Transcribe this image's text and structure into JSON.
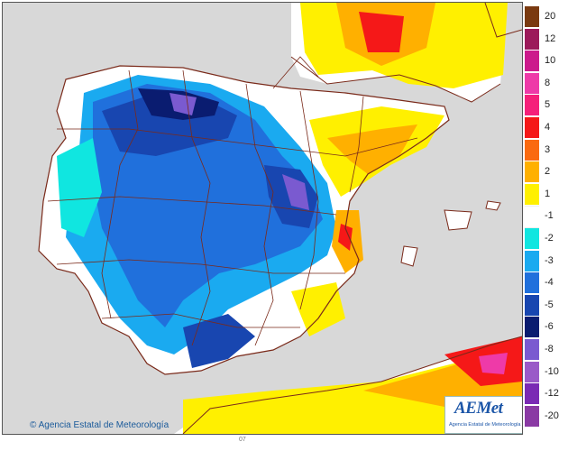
{
  "map": {
    "copyright": "Agencia Estatal de Meteorología",
    "logo_brand": "AEMet",
    "logo_subtitle": "Agencia Estatal de Meteorología",
    "footer_mark": "07"
  },
  "legend": {
    "items": [
      {
        "label": "20",
        "color": "#7a3a10"
      },
      {
        "label": "12",
        "color": "#9c1a5a"
      },
      {
        "label": "10",
        "color": "#cc1a8c"
      },
      {
        "label": "8",
        "color": "#ee3aa8"
      },
      {
        "label": "5",
        "color": "#f5207a"
      },
      {
        "label": "4",
        "color": "#f51818"
      },
      {
        "label": "3",
        "color": "#fa6a10"
      },
      {
        "label": "2",
        "color": "#ffb000"
      },
      {
        "label": "1",
        "color": "#fff000"
      },
      {
        "label": "-1",
        "color": "#ffffff"
      },
      {
        "label": "-2",
        "color": "#10e6e0"
      },
      {
        "label": "-3",
        "color": "#1aaaf0"
      },
      {
        "label": "-4",
        "color": "#2070dc"
      },
      {
        "label": "-5",
        "color": "#1846b0"
      },
      {
        "label": "-6",
        "color": "#0a1c70"
      },
      {
        "label": "-8",
        "color": "#7a5ad0"
      },
      {
        "label": "-10",
        "color": "#9a5ac8"
      },
      {
        "label": "-12",
        "color": "#7a2ab4"
      },
      {
        "label": "-20",
        "color": "#8a3aa4"
      }
    ]
  }
}
